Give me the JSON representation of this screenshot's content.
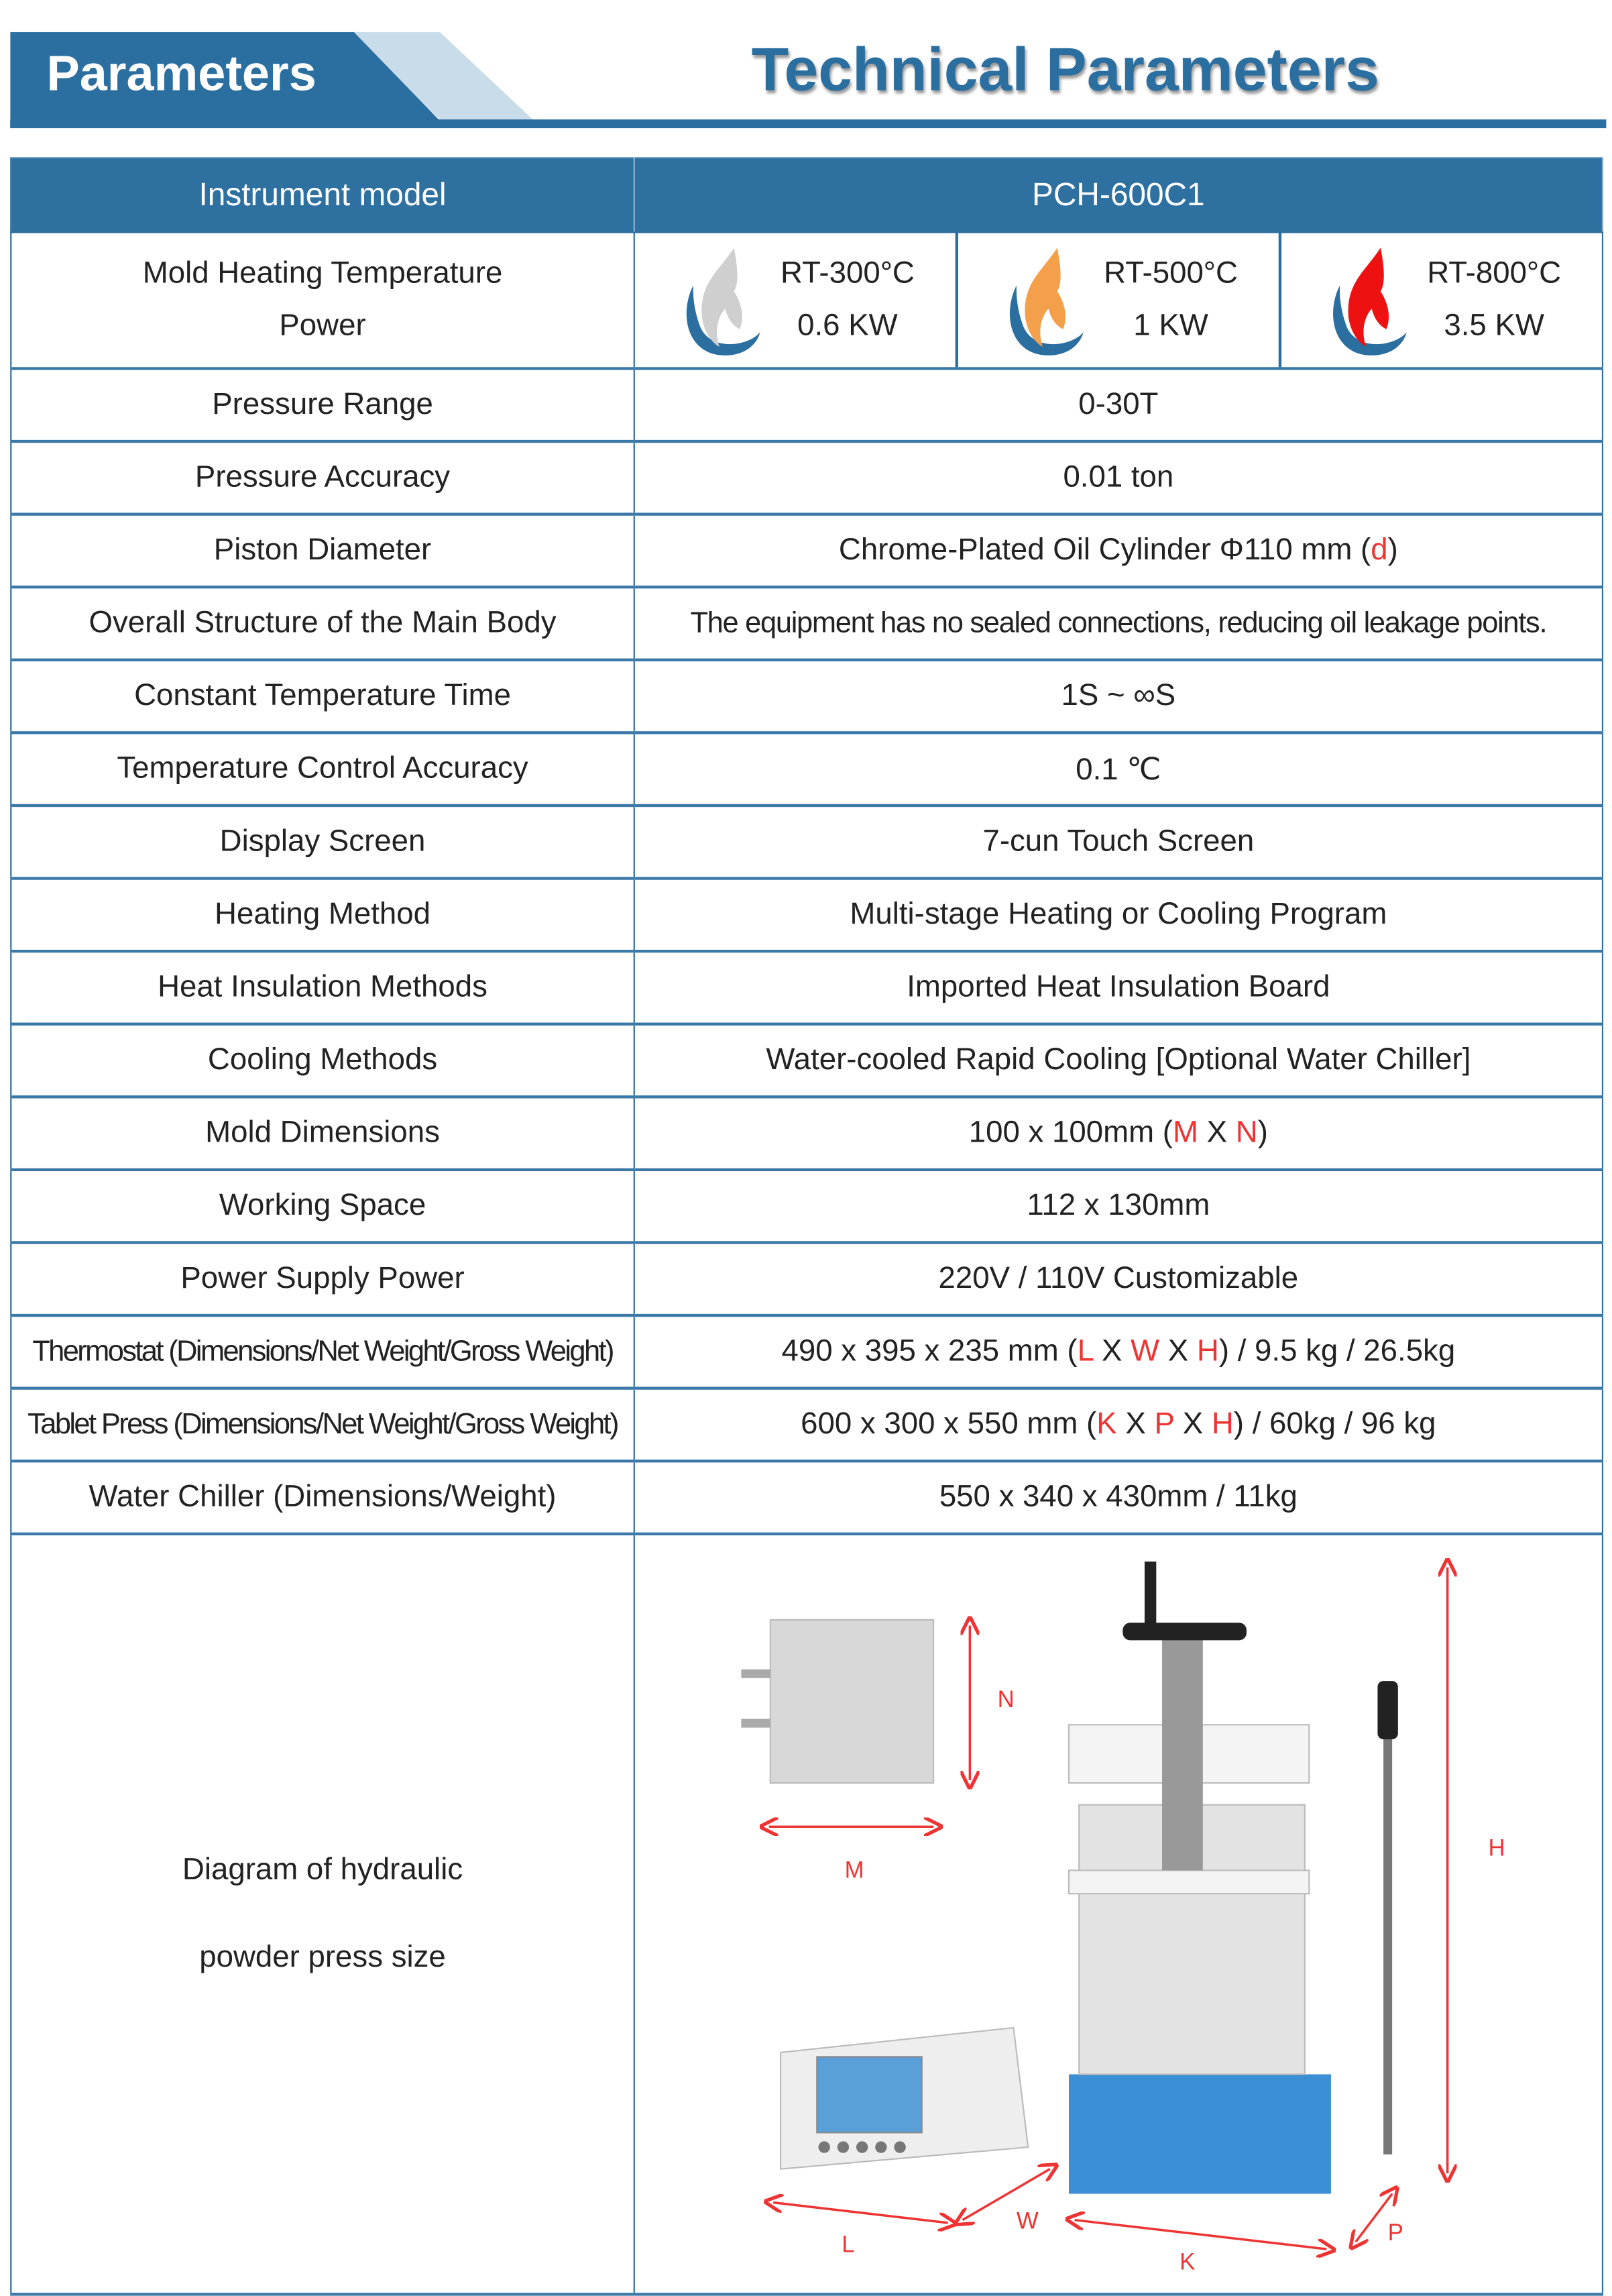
{
  "header": {
    "tab_label": "Parameters",
    "title": "Technical Parameters",
    "accent_color": "#2b6ea0"
  },
  "table": {
    "head": {
      "label": "Instrument model",
      "value": "PCH-600C1"
    },
    "heating": {
      "label_line1": "Mold Heating Temperature",
      "label_line2": "Power",
      "options": [
        {
          "temp": "RT-300°C",
          "power": "0.6 KW",
          "icon": "flame-gray-icon",
          "color": "#cfcfcf"
        },
        {
          "temp": "RT-500°C",
          "power": "1 KW",
          "icon": "flame-orange-icon",
          "color": "#f4a04a"
        },
        {
          "temp": "RT-800°C",
          "power": "3.5 KW",
          "icon": "flame-red-icon",
          "color": "#ee1111"
        }
      ]
    },
    "rows": [
      {
        "label": "Pressure Range",
        "value": "0-30T"
      },
      {
        "label": "Pressure Accuracy",
        "value": "0.01 ton"
      },
      {
        "label": "Piston Diameter",
        "value": "Chrome-Plated Oil Cylinder  Φ110 mm (",
        "v_red": "d",
        "v_end": ")"
      },
      {
        "label": "Overall Structure of the Main Body",
        "value": "The equipment has no sealed connections, reducing oil leakage points."
      },
      {
        "label": "Constant Temperature Time",
        "value": "1S ~  ∞S"
      },
      {
        "label": "Temperature Control Accuracy",
        "value": "0.1  ℃"
      },
      {
        "label": "Display Screen",
        "value": "7-cun Touch Screen"
      },
      {
        "label": "Heating Method",
        "value": "Multi-stage Heating or Cooling Program"
      },
      {
        "label": "Heat Insulation Methods",
        "value": "Imported Heat Insulation Board"
      },
      {
        "label": "Cooling Methods",
        "value": "Water-cooled Rapid Cooling [Optional Water Chiller]"
      },
      {
        "label": "Mold Dimensions",
        "value": "100 x 100mm (",
        "r1": "M",
        "x1": " X ",
        "r2": "N",
        "v_end": ")"
      },
      {
        "label": "Working Space",
        "value": "112 x 130mm"
      },
      {
        "label": "Power Supply Power",
        "value": "220V / 110V Customizable"
      },
      {
        "label": "Thermostat (Dimensions/Net Weight/Gross Weight)",
        "value": "490 x 395 x 235 mm (",
        "r1": "L",
        "x1": " X ",
        "r2": "W",
        "x2": " X ",
        "r3": "H",
        "v_end": ") / 9.5 kg / 26.5kg"
      },
      {
        "label": "Tablet Press (Dimensions/Net Weight/Gross Weight)",
        "value": "600 x 300 x 550 mm (",
        "r1": "K",
        "x1": " X ",
        "r2": "P",
        "x2": " X ",
        "r3": "H",
        "v_end": ") / 60kg / 96 kg"
      },
      {
        "label": "Water Chiller (Dimensions/Weight)",
        "value": "550 x 340 x 430mm / 11kg"
      }
    ],
    "diagram": {
      "label_line1": "Diagram of hydraulic",
      "label_line2": "powder press size",
      "dims": {
        "N": "N",
        "M": "M",
        "H": "H",
        "L": "L",
        "W": "W",
        "K": "K",
        "P": "P"
      }
    }
  }
}
